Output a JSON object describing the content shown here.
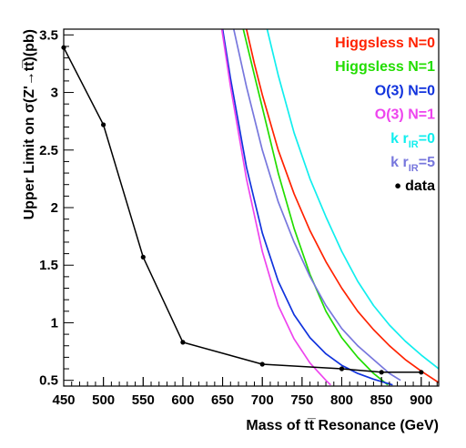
{
  "chart_data": {
    "type": "line",
    "xlabel": "Mass of tt̅ Resonance (GeV)",
    "ylabel": "Upper Limit on σ(Z'→tt̅)(pb)",
    "xlim": [
      450,
      922
    ],
    "ylim": [
      0.45,
      3.55
    ],
    "x_ticks": [
      "450",
      "500",
      "550",
      "600",
      "650",
      "700",
      "750",
      "800",
      "850",
      "900"
    ],
    "y_ticks": [
      "0.5",
      "1",
      "1.5",
      "2",
      "2.5",
      "3",
      "3.5"
    ],
    "legend_position": "top-right",
    "series": [
      {
        "name": "Higgsless N=0",
        "color": "#ff2200",
        "x": [
          680,
          690,
          700,
          720,
          740,
          760,
          780,
          800,
          820,
          840,
          860,
          880,
          900,
          922
        ],
        "y": [
          3.55,
          3.25,
          2.98,
          2.5,
          2.12,
          1.8,
          1.53,
          1.3,
          1.1,
          0.94,
          0.8,
          0.68,
          0.58,
          0.48
        ]
      },
      {
        "name": "Higgsless N=1",
        "color": "#22dd00",
        "x": [
          676,
          690,
          700,
          720,
          740,
          760,
          780,
          800,
          820,
          840,
          858
        ],
        "y": [
          3.55,
          3.15,
          2.87,
          2.3,
          1.82,
          1.42,
          1.1,
          0.87,
          0.7,
          0.56,
          0.46
        ]
      },
      {
        "name": "O(3) N=0",
        "color": "#1133dd",
        "x": [
          650,
          660,
          680,
          700,
          720,
          740,
          760,
          780,
          800,
          820,
          840,
          864
        ],
        "y": [
          3.55,
          3.12,
          2.35,
          1.78,
          1.36,
          1.07,
          0.87,
          0.73,
          0.63,
          0.56,
          0.51,
          0.46
        ]
      },
      {
        "name": "O(3) N=1",
        "color": "#ee44ee",
        "x": [
          649,
          660,
          680,
          700,
          720,
          740,
          760,
          780,
          786
        ],
        "y": [
          3.55,
          3.05,
          2.25,
          1.62,
          1.15,
          0.86,
          0.65,
          0.5,
          0.46
        ]
      },
      {
        "name": "k r_IR=0",
        "color": "#11eeee",
        "x": [
          706,
          720,
          740,
          760,
          780,
          800,
          820,
          840,
          860,
          880,
          900,
          922
        ],
        "y": [
          3.55,
          3.15,
          2.65,
          2.25,
          1.92,
          1.62,
          1.36,
          1.15,
          0.98,
          0.84,
          0.72,
          0.6
        ]
      },
      {
        "name": "k r_IR=5",
        "color": "#7777dd",
        "x": [
          664,
          680,
          700,
          720,
          740,
          760,
          780,
          800,
          820,
          840,
          860,
          874
        ],
        "y": [
          3.55,
          3.05,
          2.5,
          2.05,
          1.7,
          1.4,
          1.15,
          0.95,
          0.8,
          0.68,
          0.56,
          0.5
        ]
      },
      {
        "name": "data",
        "color": "#000000",
        "type": "line-markers",
        "x": [
          450,
          500,
          550,
          600,
          700,
          800,
          850,
          900
        ],
        "y": [
          3.39,
          2.72,
          1.57,
          0.83,
          0.64,
          0.6,
          0.57,
          0.57
        ]
      }
    ]
  },
  "legend": [
    {
      "key": "higgsless-n0",
      "main": "Higgsless N=0",
      "sub": "",
      "tail": "",
      "color": "#ff2200",
      "marker": false
    },
    {
      "key": "higgsless-n1",
      "main": "Higgsless N=1",
      "sub": "",
      "tail": "",
      "color": "#22dd00",
      "marker": false
    },
    {
      "key": "o3-n0",
      "main": "O(3) N=0",
      "sub": "",
      "tail": "",
      "color": "#1133dd",
      "marker": false
    },
    {
      "key": "o3-n1",
      "main": "O(3) N=1",
      "sub": "",
      "tail": "",
      "color": "#ee44ee",
      "marker": false
    },
    {
      "key": "k-rir-0",
      "main": "k r",
      "sub": "IR",
      "tail": "=0",
      "color": "#11eeee",
      "marker": false
    },
    {
      "key": "k-rir-5",
      "main": "k r",
      "sub": "IR",
      "tail": "=5",
      "color": "#7777dd",
      "marker": false
    },
    {
      "key": "data",
      "main": "data",
      "sub": "",
      "tail": "",
      "color": "#000000",
      "marker": true
    }
  ]
}
